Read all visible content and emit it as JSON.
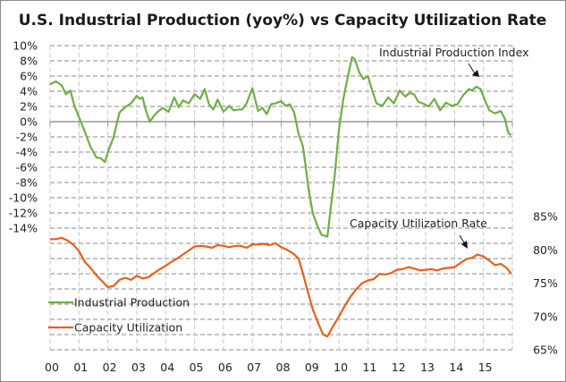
{
  "chart_data": {
    "type": "line",
    "title": "U.S. Industrial Production (yoy%) vs Capacity Utilization Rate",
    "xlabel": "",
    "x_tick_labels": [
      "00",
      "01",
      "02",
      "03",
      "04",
      "05",
      "06",
      "07",
      "08",
      "09",
      "10",
      "11",
      "12",
      "13",
      "14",
      "15"
    ],
    "x_range": [
      2000,
      2016
    ],
    "left_axis": {
      "label": "",
      "ylim": [
        -14,
        10
      ],
      "tick_labels": [
        "10%",
        "8%",
        "6%",
        "4%",
        "2%",
        "0%",
        "-2%",
        "-4%",
        "-6%",
        "-8%",
        "-10%",
        "-12%",
        "-14%"
      ]
    },
    "right_axis": {
      "label": "",
      "ylim": [
        65,
        85
      ],
      "tick_labels": [
        "85%",
        "80%",
        "75%",
        "70%",
        "65%"
      ]
    },
    "grid": true,
    "legend": {
      "placement": "bottom-left",
      "entries": [
        {
          "name": "Industrial Production",
          "color": "#70ad47"
        },
        {
          "name": "Capacity Utilization",
          "color": "#e8601c"
        }
      ]
    },
    "annotations": [
      {
        "text": "Industrial Production Index",
        "points_to": {
          "series": "Industrial Production",
          "x": 2014.8
        }
      },
      {
        "text": "Capacity Utilization Rate",
        "points_to": {
          "series": "Capacity Utilization",
          "x": 2014.3
        }
      }
    ],
    "series": [
      {
        "name": "Industrial Production",
        "axis": "left",
        "color": "#70ad47",
        "x": [
          2000.0,
          2000.2,
          2000.4,
          2000.55,
          2000.7,
          2000.85,
          2001.0,
          2001.2,
          2001.4,
          2001.6,
          2001.75,
          2001.9,
          2002.0,
          2002.2,
          2002.4,
          2002.6,
          2002.8,
          2003.0,
          2003.1,
          2003.2,
          2003.3,
          2003.45,
          2003.6,
          2003.75,
          2003.9,
          2004.1,
          2004.3,
          2004.45,
          2004.6,
          2004.8,
          2005.0,
          2005.2,
          2005.35,
          2005.5,
          2005.65,
          2005.8,
          2006.0,
          2006.2,
          2006.35,
          2006.5,
          2006.65,
          2006.8,
          2007.0,
          2007.2,
          2007.35,
          2007.5,
          2007.65,
          2007.8,
          2008.0,
          2008.15,
          2008.3,
          2008.45,
          2008.6,
          2008.75,
          2008.85,
          2008.95,
          2009.1,
          2009.25,
          2009.4,
          2009.5,
          2009.6,
          2009.7,
          2009.85,
          2010.0,
          2010.15,
          2010.3,
          2010.45,
          2010.55,
          2010.7,
          2010.85,
          2011.0,
          2011.15,
          2011.3,
          2011.5,
          2011.7,
          2011.9,
          2012.1,
          2012.3,
          2012.45,
          2012.6,
          2012.75,
          2012.9,
          2013.1,
          2013.3,
          2013.5,
          2013.7,
          2013.9,
          2014.1,
          2014.3,
          2014.5,
          2014.6,
          2014.75,
          2014.9,
          2015.05,
          2015.2,
          2015.4,
          2015.6,
          2015.75,
          2015.85,
          2015.95
        ],
        "values": [
          4.9,
          5.3,
          4.8,
          3.6,
          4.1,
          2.0,
          0.6,
          -1.3,
          -3.3,
          -4.7,
          -4.8,
          -5.3,
          -4.0,
          -2.0,
          1.2,
          1.9,
          2.4,
          3.4,
          3.0,
          3.2,
          1.7,
          0.0,
          0.8,
          1.4,
          1.8,
          1.3,
          3.2,
          1.9,
          2.8,
          2.4,
          3.6,
          3.0,
          4.3,
          2.3,
          1.6,
          2.9,
          1.3,
          2.1,
          1.5,
          1.6,
          1.6,
          2.4,
          4.4,
          1.4,
          1.8,
          1.0,
          2.3,
          2.4,
          2.7,
          2.1,
          2.3,
          1.2,
          -1.6,
          -3.2,
          -6.0,
          -9.0,
          -12.1,
          -13.7,
          -14.9,
          -15.0,
          -15.1,
          -11.8,
          -7.1,
          -1.0,
          3.0,
          5.8,
          8.5,
          8.2,
          6.5,
          5.6,
          6.0,
          4.1,
          2.4,
          2.1,
          3.2,
          2.4,
          4.1,
          3.3,
          3.8,
          3.6,
          2.6,
          2.4,
          2.0,
          3.0,
          1.5,
          2.5,
          2.1,
          2.3,
          3.5,
          4.3,
          4.1,
          4.6,
          4.3,
          2.8,
          1.5,
          1.1,
          1.4,
          0.3,
          -1.4,
          -1.8
        ]
      },
      {
        "name": "Capacity Utilization",
        "axis": "right",
        "color": "#e8601c",
        "x": [
          2000.0,
          2000.2,
          2000.4,
          2000.6,
          2000.8,
          2001.0,
          2001.2,
          2001.4,
          2001.6,
          2001.8,
          2002.0,
          2002.2,
          2002.4,
          2002.6,
          2002.8,
          2003.0,
          2003.2,
          2003.4,
          2003.6,
          2003.8,
          2004.0,
          2004.2,
          2004.4,
          2004.6,
          2004.8,
          2005.0,
          2005.2,
          2005.4,
          2005.6,
          2005.8,
          2006.0,
          2006.2,
          2006.4,
          2006.6,
          2006.8,
          2007.0,
          2007.2,
          2007.4,
          2007.6,
          2007.8,
          2008.0,
          2008.2,
          2008.4,
          2008.6,
          2008.75,
          2008.9,
          2009.1,
          2009.3,
          2009.45,
          2009.6,
          2009.8,
          2010.0,
          2010.2,
          2010.4,
          2010.6,
          2010.8,
          2011.0,
          2011.2,
          2011.4,
          2011.6,
          2011.8,
          2012.0,
          2012.2,
          2012.4,
          2012.6,
          2012.8,
          2013.0,
          2013.2,
          2013.4,
          2013.6,
          2013.8,
          2014.0,
          2014.2,
          2014.4,
          2014.6,
          2014.8,
          2015.0,
          2015.2,
          2015.4,
          2015.6,
          2015.8,
          2015.95
        ],
        "values": [
          81.6,
          81.6,
          81.8,
          81.4,
          80.8,
          79.8,
          78.2,
          77.3,
          76.2,
          75.3,
          74.4,
          74.6,
          75.5,
          75.8,
          75.5,
          76.1,
          75.7,
          75.9,
          76.5,
          77.1,
          77.6,
          78.2,
          78.7,
          79.3,
          79.9,
          80.5,
          80.6,
          80.5,
          80.3,
          80.7,
          80.6,
          80.4,
          80.6,
          80.6,
          80.3,
          80.8,
          80.8,
          80.9,
          80.7,
          81.0,
          80.4,
          80.0,
          79.5,
          78.7,
          76.5,
          74.0,
          71.0,
          68.8,
          67.3,
          67.0,
          68.6,
          70.0,
          71.6,
          73.0,
          74.1,
          75.0,
          75.4,
          75.6,
          76.4,
          76.3,
          76.5,
          77.0,
          77.1,
          77.4,
          77.2,
          76.9,
          77.0,
          77.1,
          76.9,
          77.2,
          77.3,
          77.4,
          78.0,
          78.6,
          78.8,
          79.3,
          79.0,
          78.4,
          77.7,
          77.9,
          77.3,
          76.5
        ]
      }
    ]
  }
}
